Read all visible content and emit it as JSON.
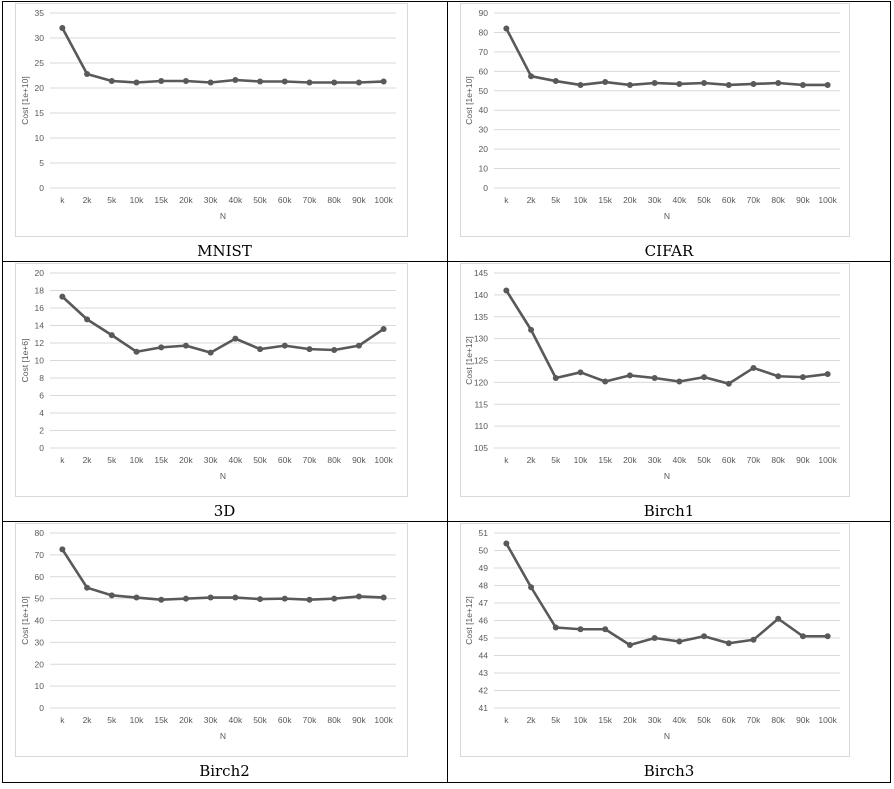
{
  "x_categories": [
    "k",
    "2k",
    "5k",
    "10k",
    "15k",
    "20k",
    "30k",
    "40k",
    "50k",
    "60k",
    "70k",
    "80k",
    "90k",
    "100k"
  ],
  "chart_data": [
    {
      "type": "line",
      "caption": "MNIST",
      "xlabel": "N",
      "ylabel": "Cost [1e+10]",
      "ylim": [
        0,
        35
      ],
      "ytick_step": 5,
      "grid": true,
      "legend": "none",
      "categories": [
        "k",
        "2k",
        "5k",
        "10k",
        "15k",
        "20k",
        "30k",
        "40k",
        "50k",
        "60k",
        "70k",
        "80k",
        "90k",
        "100k"
      ],
      "series": [
        {
          "values": [
            32,
            22.8,
            21.4,
            21.1,
            21.4,
            21.4,
            21.1,
            21.6,
            21.3,
            21.3,
            21.1,
            21.1,
            21.1,
            21.3
          ]
        }
      ]
    },
    {
      "type": "line",
      "caption": "CIFAR",
      "xlabel": "N",
      "ylabel": "Cost [1e+10]",
      "ylim": [
        0,
        90
      ],
      "ytick_step": 10,
      "grid": true,
      "legend": "none",
      "categories": [
        "k",
        "2k",
        "5k",
        "10k",
        "15k",
        "20k",
        "30k",
        "40k",
        "50k",
        "60k",
        "70k",
        "80k",
        "90k",
        "100k"
      ],
      "series": [
        {
          "values": [
            82,
            57.5,
            55,
            53,
            54.5,
            53,
            54,
            53.5,
            54,
            53,
            53.5,
            54,
            53,
            53
          ]
        }
      ]
    },
    {
      "type": "line",
      "caption": "3D",
      "xlabel": "N",
      "ylabel": "Cost [1e+6]",
      "ylim": [
        0,
        20
      ],
      "ytick_step": 2,
      "grid": true,
      "legend": "none",
      "categories": [
        "k",
        "2k",
        "5k",
        "10k",
        "15k",
        "20k",
        "30k",
        "40k",
        "50k",
        "60k",
        "70k",
        "80k",
        "90k",
        "100k"
      ],
      "series": [
        {
          "values": [
            17.3,
            14.7,
            12.9,
            11.0,
            11.5,
            11.7,
            10.9,
            12.5,
            11.3,
            11.7,
            11.3,
            11.2,
            11.7,
            13.6
          ]
        }
      ]
    },
    {
      "type": "line",
      "caption": "Birch1",
      "xlabel": "N",
      "ylabel": "Cost [1e+12]",
      "ylim": [
        105,
        145
      ],
      "ytick_step": 5,
      "grid": true,
      "legend": "none",
      "categories": [
        "k",
        "2k",
        "5k",
        "10k",
        "15k",
        "20k",
        "30k",
        "40k",
        "50k",
        "60k",
        "70k",
        "80k",
        "90k",
        "100k"
      ],
      "series": [
        {
          "values": [
            141,
            132,
            121,
            122.3,
            120.2,
            121.6,
            121,
            120.2,
            121.2,
            119.7,
            123.3,
            121.4,
            121.2,
            121.9
          ]
        }
      ]
    },
    {
      "type": "line",
      "caption": "Birch2",
      "xlabel": "N",
      "ylabel": "Cost [1e+10]",
      "ylim": [
        0,
        80
      ],
      "ytick_step": 10,
      "grid": true,
      "legend": "none",
      "categories": [
        "k",
        "2k",
        "5k",
        "10k",
        "15k",
        "20k",
        "30k",
        "40k",
        "50k",
        "60k",
        "70k",
        "80k",
        "90k",
        "100k"
      ],
      "series": [
        {
          "values": [
            72.5,
            55,
            51.5,
            50.5,
            49.5,
            50,
            50.5,
            50.5,
            49.8,
            50,
            49.5,
            50,
            51,
            50.5
          ]
        }
      ]
    },
    {
      "type": "line",
      "caption": "Birch3",
      "xlabel": "N",
      "ylabel": "Cost [1e+12]",
      "ylim": [
        41,
        51
      ],
      "ytick_step": 1,
      "grid": true,
      "legend": "none",
      "categories": [
        "k",
        "2k",
        "5k",
        "10k",
        "15k",
        "20k",
        "30k",
        "40k",
        "50k",
        "60k",
        "70k",
        "80k",
        "90k",
        "100k"
      ],
      "series": [
        {
          "values": [
            50.4,
            47.9,
            45.6,
            45.5,
            45.5,
            44.6,
            45,
            44.8,
            45.1,
            44.7,
            44.9,
            46.1,
            45.1,
            45.1
          ]
        }
      ]
    }
  ],
  "style": {
    "line_color": "#595959",
    "grid_color": "#d9d9d9",
    "tick_color": "#595959"
  }
}
